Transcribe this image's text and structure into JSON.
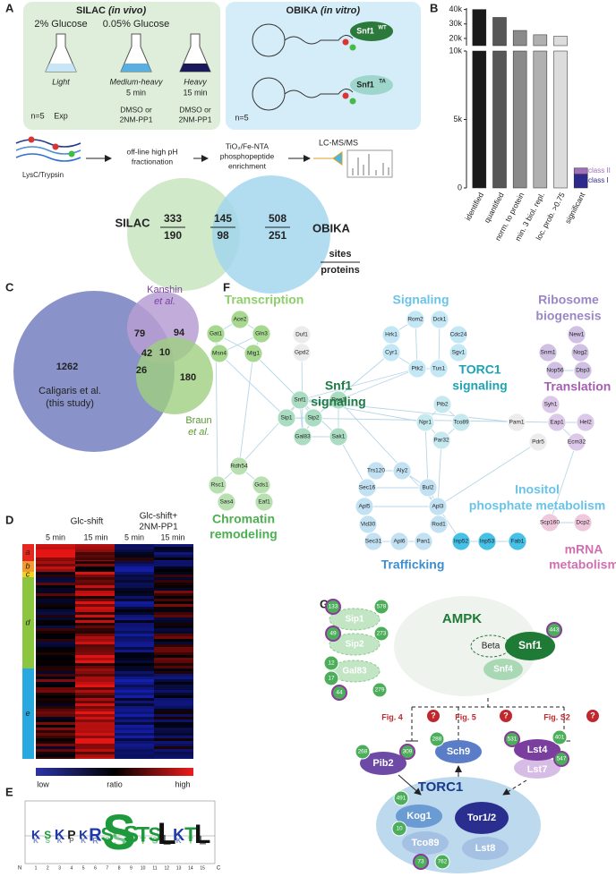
{
  "panel_labels": [
    "A",
    "B",
    "C",
    "D",
    "E",
    "F",
    "G"
  ],
  "panel_a": {
    "silac": {
      "title": "SILAC",
      "title_note": "(in vivo)",
      "conditions": [
        "2% Glucose",
        "0.05% Glucose"
      ],
      "labels": [
        "Light",
        "Medium-heavy",
        "Heavy"
      ],
      "times": [
        "5 min",
        "15 min"
      ],
      "n": "n=5",
      "exp": "Exp",
      "treatments": [
        "DMSO or",
        "2NM-PP1",
        "DMSO or",
        "2NM-PP1"
      ]
    },
    "obika": {
      "title": "OBIKA",
      "title_note": "(in vitro)",
      "kinases": [
        {
          "name": "Snf1",
          "sup": "WT"
        },
        {
          "name": "Snf1",
          "sup": "TA"
        }
      ],
      "n": "n=5"
    },
    "workflow": [
      "LysC/Trypsin",
      "off-line high pH",
      "fractionation",
      "TiO₂/Fe-NTA",
      "phosphopeptide",
      "enrichment",
      "LC-MS/MS"
    ],
    "venn": {
      "left": "SILAC",
      "right": "OBIKA",
      "left_only": [
        333,
        190
      ],
      "overlap": [
        145,
        98
      ],
      "right_only": [
        508,
        251
      ],
      "legend": [
        "sites",
        "proteins"
      ]
    }
  },
  "chart_data": {
    "type": "bar",
    "categories": [
      "identified",
      "quantified",
      "norm. to protein",
      "min. 3 biol. repl.",
      "loc. prob. >0.75",
      "significant"
    ],
    "values": [
      40000,
      34500,
      25500,
      22500,
      21500,
      null
    ],
    "bar_colors": [
      "#1a1a1a",
      "#575757",
      "#8a8a8a",
      "#b0b0b0",
      "#dcdcdc"
    ],
    "series": [
      {
        "name": "class II",
        "color": "#a070b8",
        "values": [
          null,
          null,
          null,
          null,
          null,
          450
        ]
      },
      {
        "name": "class I",
        "color": "#2e2a8c",
        "values": [
          null,
          null,
          null,
          null,
          null,
          1000
        ]
      }
    ],
    "ylim": [
      0,
      10000
    ],
    "yticks": [
      0,
      {
        "value": 5000,
        "label": "5k"
      },
      {
        "value": 10000,
        "label": "10k"
      }
    ],
    "ylim_upper": [
      15000,
      41000
    ],
    "yticks_upper": [
      {
        "value": 20000,
        "label": "20k"
      },
      {
        "value": 30000,
        "label": "30k"
      },
      {
        "value": 40000,
        "label": "40k"
      }
    ]
  },
  "panel_c": {
    "main": [
      "Caligaris et al.",
      "(this study)"
    ],
    "kanshin": [
      "Kanshin",
      "et al."
    ],
    "braun": [
      "Braun",
      "et al."
    ],
    "counts": {
      "main_only": 1262,
      "main_kanshin": 79,
      "kanshin_only": 94,
      "all_three": 42,
      "kanshin_braun": 10,
      "main_braun": 26,
      "braun_only": 180
    }
  },
  "panel_d": {
    "conditions": [
      "Glc-shift",
      "Glc-shift+",
      "2NM-PP1"
    ],
    "times": [
      "5 min",
      "15 min",
      "5 min",
      "15 min"
    ],
    "clusters": [
      "a",
      "b",
      "c",
      "d",
      "e"
    ],
    "scale": [
      "low",
      "ratio",
      "high"
    ]
  },
  "panel_e": {
    "letters": [
      "K",
      "S",
      "K",
      "P",
      "K",
      "R",
      "S",
      "S",
      "S",
      "T",
      "S",
      "L",
      "K",
      "T",
      "L"
    ],
    "positions": [
      1,
      2,
      3,
      4,
      5,
      6,
      7,
      8,
      9,
      10,
      11,
      12,
      13,
      14,
      15
    ],
    "ends": [
      "N",
      "C"
    ]
  },
  "panel_f": {
    "groups": [
      [
        "Transcription"
      ],
      [
        "Signaling"
      ],
      [
        "Ribosome",
        "biogenesis"
      ],
      [
        "Snf1",
        "signaling"
      ],
      [
        "TORC1",
        "signaling"
      ],
      [
        "Translation"
      ],
      [
        "Inositol",
        "phosphate metabolism"
      ],
      [
        "Chromatin",
        "remodeling"
      ],
      [
        "Trafficking"
      ],
      [
        "mRNA",
        "metabolism"
      ]
    ],
    "nodes": [
      "Ace2",
      "Gat1",
      "Gln3",
      "Msn4",
      "Mig1",
      "Duf1",
      "Gpd2",
      "Rom2",
      "Dck1",
      "Hrk1",
      "Cdc24",
      "Cyr1",
      "Sgv1",
      "Ptk2",
      "Tus1",
      "New1",
      "Snm1",
      "Nog2",
      "Nop56",
      "Dbp3",
      "Snf1",
      "Reg1",
      "Sip1",
      "Sip2",
      "Gal83",
      "Sak1",
      "Pib2",
      "Npr1",
      "Tco89",
      "Par32",
      "Pam1",
      "Syh1",
      "Eap1",
      "Hel2",
      "Pdr5",
      "Ecm32",
      "Rdh54",
      "Rsc1",
      "Gds1",
      "Sas4",
      "Eaf1",
      "Trs120",
      "Aly2",
      "Sec16",
      "Bul2",
      "Apl5",
      "Apl3",
      "Vid30",
      "Rod1",
      "Sec31",
      "Apl6",
      "Pan1",
      "Inp52",
      "Inp53",
      "Fab1",
      "Scp160",
      "Dcp2"
    ]
  },
  "panel_g": {
    "complex": "AMPK",
    "subunits": [
      "Snf1",
      "Beta",
      "Snf4",
      "Sip1",
      "Sip2",
      "Gal83"
    ],
    "sites": {
      "sip1": [
        133,
        578
      ],
      "sip2": [
        49,
        273
      ],
      "gal83": [
        12,
        17,
        44,
        279
      ],
      "snf1": [
        443
      ],
      "pib2": [
        268,
        309
      ],
      "sch9": [
        288
      ],
      "lst4": [
        531,
        401,
        547
      ],
      "torc1": [
        491,
        10,
        73,
        762
      ]
    },
    "figs": [
      "Fig. 4",
      "Fig. 5",
      "Fig. S2"
    ],
    "question": "?",
    "targets": [
      "Pib2",
      "Sch9",
      "Lst4",
      "Lst7"
    ],
    "torc1": {
      "title": "TORC1",
      "subunits": [
        "Kog1",
        "Tor1/2",
        "Tco89",
        "Lst8"
      ]
    }
  }
}
